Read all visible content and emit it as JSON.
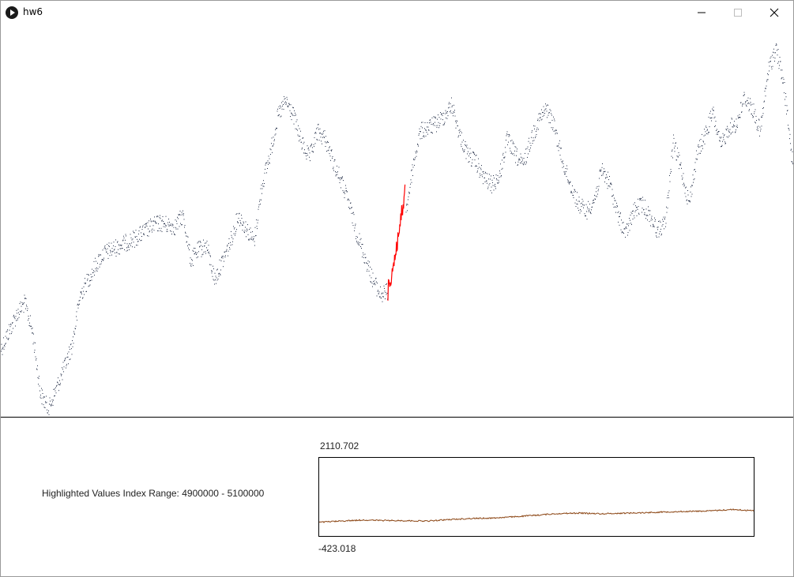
{
  "window": {
    "title": "hw6",
    "icon": "processing-play-icon",
    "controls": [
      "minimize-icon",
      "maximize-icon",
      "close-icon"
    ]
  },
  "colors": {
    "main_series": "#1f2a44",
    "highlight": "#ff0000",
    "mini_series": "#8b4513",
    "divider": "#000000"
  },
  "info": {
    "range_text": "Highlighted Values Index Range: 4900000 - 5100000"
  },
  "mini_chart": {
    "max_label": "2110.702",
    "min_label": "-423.018"
  },
  "chart_data": [
    {
      "type": "scatter",
      "title": "",
      "xlabel": "",
      "ylabel": "",
      "x": [
        0.0,
        0.02,
        0.03,
        0.04,
        0.05,
        0.06,
        0.08,
        0.09,
        0.1,
        0.12,
        0.13,
        0.15,
        0.17,
        0.19,
        0.2,
        0.22,
        0.23,
        0.24,
        0.25,
        0.26,
        0.27,
        0.29,
        0.3,
        0.32,
        0.33,
        0.34,
        0.35,
        0.36,
        0.37,
        0.38,
        0.39,
        0.4,
        0.41,
        0.42,
        0.43,
        0.44,
        0.45,
        0.46,
        0.47,
        0.48,
        0.49,
        0.5,
        0.51,
        0.52,
        0.53,
        0.55,
        0.56,
        0.57,
        0.58,
        0.59,
        0.6,
        0.61,
        0.62,
        0.63,
        0.64,
        0.65,
        0.66,
        0.67,
        0.68,
        0.69,
        0.7,
        0.71,
        0.72,
        0.73,
        0.74,
        0.75,
        0.76,
        0.77,
        0.78,
        0.79,
        0.8,
        0.81,
        0.82,
        0.83,
        0.84,
        0.85,
        0.86,
        0.87,
        0.88,
        0.89,
        0.9,
        0.91,
        0.92,
        0.93,
        0.94,
        0.95,
        0.96,
        0.97,
        0.98,
        0.99,
        1.0
      ],
      "y": [
        0.17,
        0.26,
        0.29,
        0.21,
        0.05,
        0.01,
        0.12,
        0.18,
        0.31,
        0.39,
        0.42,
        0.44,
        0.46,
        0.49,
        0.5,
        0.49,
        0.52,
        0.4,
        0.43,
        0.44,
        0.35,
        0.45,
        0.52,
        0.45,
        0.6,
        0.68,
        0.78,
        0.82,
        0.78,
        0.71,
        0.67,
        0.74,
        0.72,
        0.66,
        0.61,
        0.55,
        0.47,
        0.41,
        0.35,
        0.31,
        0.32,
        0.4,
        0.5,
        0.64,
        0.74,
        0.76,
        0.78,
        0.81,
        0.73,
        0.68,
        0.66,
        0.62,
        0.6,
        0.62,
        0.72,
        0.68,
        0.65,
        0.72,
        0.77,
        0.8,
        0.75,
        0.66,
        0.6,
        0.55,
        0.53,
        0.56,
        0.64,
        0.6,
        0.52,
        0.47,
        0.53,
        0.55,
        0.52,
        0.48,
        0.5,
        0.71,
        0.64,
        0.55,
        0.68,
        0.73,
        0.79,
        0.7,
        0.75,
        0.76,
        0.83,
        0.8,
        0.74,
        0.9,
        0.96,
        0.86,
        0.67
      ]
    },
    {
      "type": "line",
      "title": "",
      "xlabel": "",
      "ylabel": "",
      "ylim": [
        -423.018,
        2110.702
      ],
      "x": [
        0.0,
        0.05,
        0.1,
        0.15,
        0.2,
        0.25,
        0.3,
        0.35,
        0.4,
        0.45,
        0.5,
        0.55,
        0.6,
        0.65,
        0.7,
        0.75,
        0.8,
        0.85,
        0.9,
        0.95,
        1.0
      ],
      "y": [
        21,
        60,
        94,
        78,
        72,
        60,
        109,
        144,
        158,
        200,
        251,
        304,
        319,
        297,
        315,
        332,
        358,
        374,
        389,
        436,
        393
      ]
    }
  ]
}
